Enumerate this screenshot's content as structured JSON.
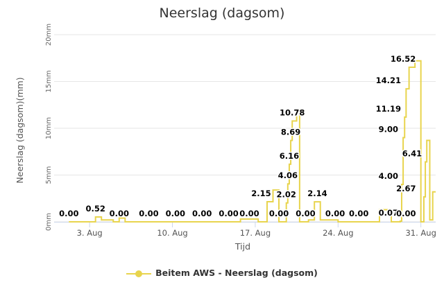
{
  "chart_data": {
    "type": "line",
    "title": "Neerslag (dagsom)",
    "xlabel": "Tijd",
    "ylabel": "Neerslag (dagsom)(mm)",
    "ylim": [
      0,
      20
    ],
    "yticks": [
      "0mm",
      "5mm",
      "10mm",
      "15mm",
      "20mm"
    ],
    "xticks": [
      "3. Aug",
      "10. Aug",
      "17. Aug",
      "24. Aug",
      "31. Aug"
    ],
    "grid": true,
    "legend_position": "bottom",
    "color": "#e8d44d",
    "series": [
      {
        "name": "Beitem AWS - Neerslag (dagsom)",
        "points": [
          {
            "x": "2021-08-01 06:00",
            "y": 0.0
          },
          {
            "x": "2021-08-03 12:00",
            "y": 0.52
          },
          {
            "x": "2021-08-04 00:00",
            "y": 0.2
          },
          {
            "x": "2021-08-05 00:00",
            "y": 0.0
          },
          {
            "x": "2021-08-05 12:00",
            "y": 0.4
          },
          {
            "x": "2021-08-06 00:00",
            "y": 0.0
          },
          {
            "x": "2021-08-08 00:00",
            "y": 0.0
          },
          {
            "x": "2021-08-11 00:00",
            "y": 0.0
          },
          {
            "x": "2021-08-15 18:00",
            "y": 0.3
          },
          {
            "x": "2021-08-17 06:00",
            "y": 0.0
          },
          {
            "x": "2021-08-18 00:00",
            "y": 2.15
          },
          {
            "x": "2021-08-18 12:00",
            "y": 3.4
          },
          {
            "x": "2021-08-19 00:00",
            "y": 0.0
          },
          {
            "x": "2021-08-19 15:00",
            "y": 2.02
          },
          {
            "x": "2021-08-19 18:00",
            "y": 4.06
          },
          {
            "x": "2021-08-19 21:00",
            "y": 6.16
          },
          {
            "x": "2021-08-20 00:00",
            "y": 8.69
          },
          {
            "x": "2021-08-20 03:00",
            "y": 10.78
          },
          {
            "x": "2021-08-20 12:00",
            "y": 12.0
          },
          {
            "x": "2021-08-20 18:00",
            "y": 0.0
          },
          {
            "x": "2021-08-21 12:00",
            "y": 0.2
          },
          {
            "x": "2021-08-22 00:00",
            "y": 2.14
          },
          {
            "x": "2021-08-22 12:00",
            "y": 0.2
          },
          {
            "x": "2021-08-24 00:00",
            "y": 0.0
          },
          {
            "x": "2021-08-26 00:00",
            "y": 0.0
          },
          {
            "x": "2021-08-27 12:00",
            "y": 1.3
          },
          {
            "x": "2021-08-28 12:00",
            "y": 0.0
          },
          {
            "x": "2021-08-29 06:00",
            "y": 0.07
          },
          {
            "x": "2021-08-29 09:00",
            "y": 4.0
          },
          {
            "x": "2021-08-29 12:00",
            "y": 9.0
          },
          {
            "x": "2021-08-29 15:00",
            "y": 11.19
          },
          {
            "x": "2021-08-29 18:00",
            "y": 14.21
          },
          {
            "x": "2021-08-30 00:00",
            "y": 16.52
          },
          {
            "x": "2021-08-30 12:00",
            "y": 17.2
          },
          {
            "x": "2021-08-31 00:00",
            "y": 0.0
          },
          {
            "x": "2021-08-31 06:00",
            "y": 2.67
          },
          {
            "x": "2021-08-31 09:00",
            "y": 6.41
          },
          {
            "x": "2021-08-31 12:00",
            "y": 8.7
          },
          {
            "x": "2021-08-31 18:00",
            "y": 0.2
          },
          {
            "x": "2021-09-01 00:00",
            "y": 3.2
          }
        ]
      }
    ],
    "data_labels": [
      {
        "x": "2021-08-01 06:00",
        "text": "0.00"
      },
      {
        "x": "2021-08-03 12:00",
        "text": "0.52"
      },
      {
        "x": "2021-08-05 12:00",
        "text": "0.00"
      },
      {
        "x": "2021-08-08 00:00",
        "text": "0.00"
      },
      {
        "x": "2021-08-10 06:00",
        "text": "0.00"
      },
      {
        "x": "2021-08-12 12:00",
        "text": "0.00"
      },
      {
        "x": "2021-08-14 18:00",
        "text": "0.00"
      },
      {
        "x": "2021-08-16 12:00",
        "text": "0.00"
      },
      {
        "x": "2021-08-17 12:00",
        "text": "2.15"
      },
      {
        "x": "2021-08-19 00:00",
        "text": "0.00"
      },
      {
        "x": "2021-08-19 15:00",
        "text": "2.02"
      },
      {
        "x": "2021-08-19 18:00",
        "text": "4.06"
      },
      {
        "x": "2021-08-19 21:00",
        "text": "6.16"
      },
      {
        "x": "2021-08-20 00:00",
        "text": "8.69"
      },
      {
        "x": "2021-08-20 03:00",
        "text": "10.78"
      },
      {
        "x": "2021-08-21 06:00",
        "text": "0.00"
      },
      {
        "x": "2021-08-22 06:00",
        "text": "2.14"
      },
      {
        "x": "2021-08-23 18:00",
        "text": "0.00"
      },
      {
        "x": "2021-08-25 18:00",
        "text": "0.00"
      },
      {
        "x": "2021-08-28 06:00",
        "text": "0.07"
      },
      {
        "x": "2021-08-28 06:00",
        "text": "4.00"
      },
      {
        "x": "2021-08-28 06:00",
        "text": "9.00"
      },
      {
        "x": "2021-08-28 06:00",
        "text": "11.19"
      },
      {
        "x": "2021-08-28 06:00",
        "text": "14.21"
      },
      {
        "x": "2021-08-29 12:00",
        "text": "16.52"
      },
      {
        "x": "2021-08-29 18:00",
        "text": "0.00"
      },
      {
        "x": "2021-08-29 18:00",
        "text": "2.67"
      },
      {
        "x": "2021-08-30 06:00",
        "text": "6.41"
      }
    ]
  }
}
